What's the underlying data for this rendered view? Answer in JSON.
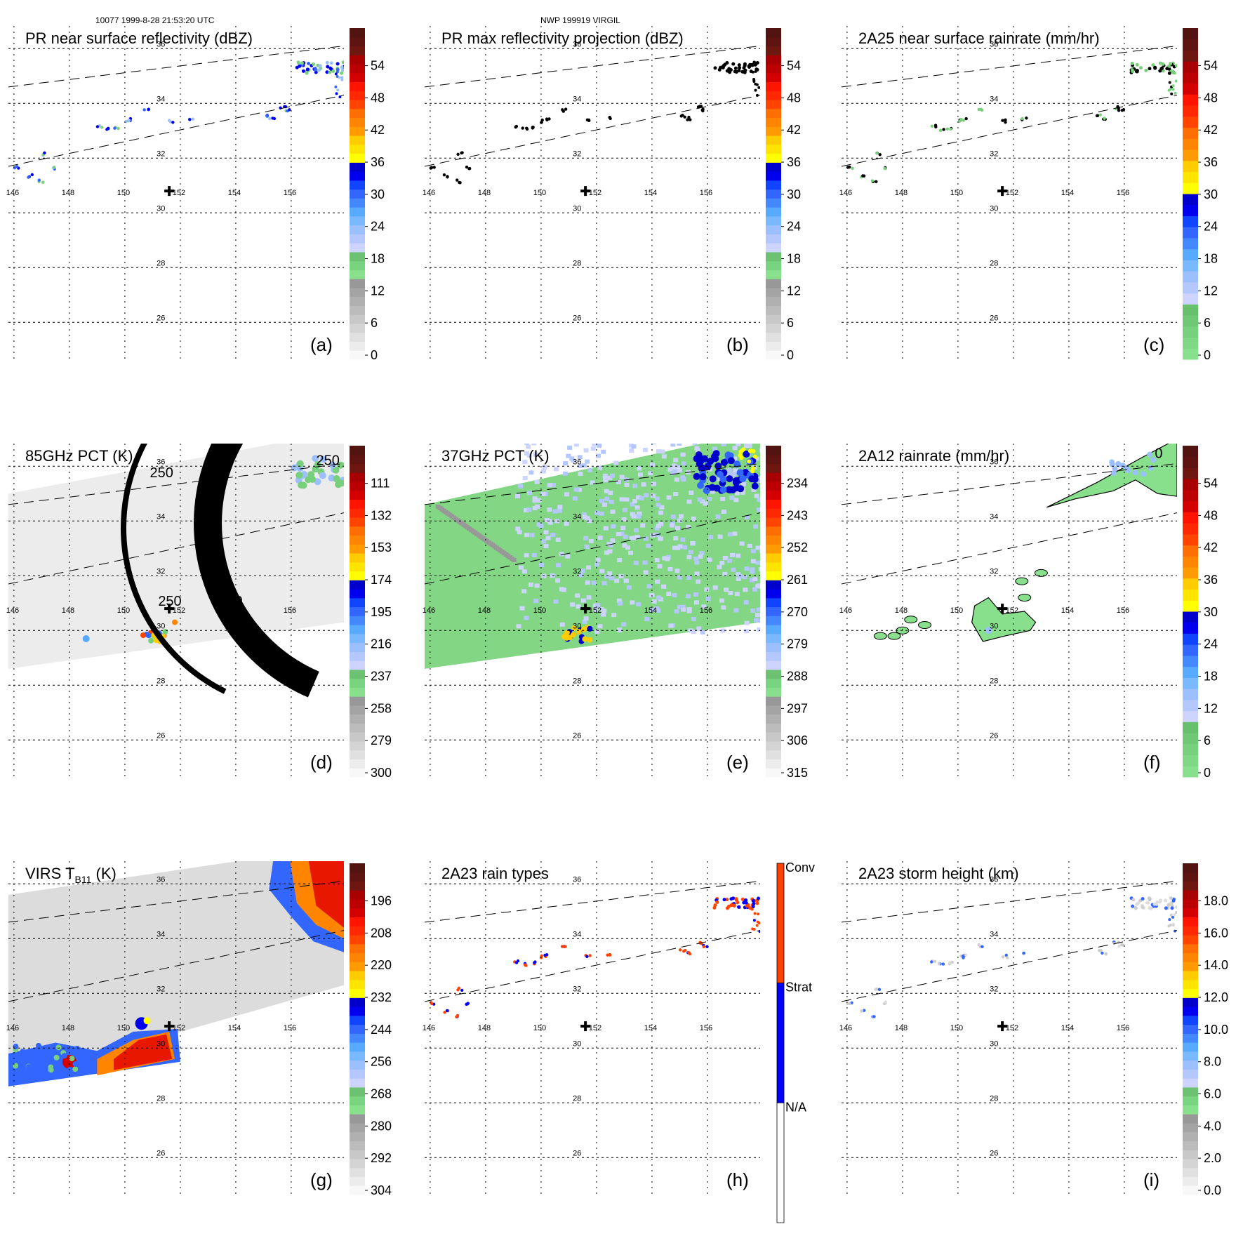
{
  "figure": {
    "header_left": "10077 1999-8-28 21:53:20 UTC",
    "header_center": "NWP 199919 VIRGIL"
  },
  "chart_data": [
    {
      "id": "a",
      "type": "heatmap",
      "title": "PR near surface reflectivity (dBZ)",
      "panel_label": "(a)",
      "map": {
        "lon_ticks": [
          146,
          148,
          150,
          152,
          154,
          156
        ],
        "lat_ticks": [
          26,
          28,
          30,
          32,
          34,
          36
        ],
        "lon_range": [
          145.8,
          157.9
        ],
        "lat_range": [
          24.7,
          36.7
        ],
        "storm_center": [
          151.6,
          30.8
        ],
        "swath_edges": "dashed",
        "grid": true
      },
      "colorbar": {
        "ticks": [
          "54",
          "48",
          "42",
          "36",
          "30",
          "24",
          "18",
          "12",
          "6",
          "0"
        ],
        "range": [
          0,
          60
        ],
        "scheme": "gray-green-blue-yellow-orange-red-maroon"
      },
      "content": "sparse echoes along narrow PR swath"
    },
    {
      "id": "b",
      "type": "heatmap",
      "title": "PR max reflectivity projection (dBZ)",
      "panel_label": "(b)",
      "map": {
        "lon_ticks": [
          146,
          148,
          150,
          152,
          154,
          156
        ],
        "lat_ticks": [
          26,
          28,
          30,
          32,
          34,
          36
        ],
        "lon_range": [
          145.8,
          157.9
        ],
        "lat_range": [
          24.7,
          36.7
        ],
        "storm_center": [
          151.6,
          30.8
        ],
        "swath_edges": "dashed",
        "grid": true
      },
      "colorbar": {
        "ticks": [
          "54",
          "48",
          "42",
          "36",
          "30",
          "24",
          "18",
          "12",
          "6",
          "0"
        ],
        "range": [
          0,
          60
        ],
        "scheme": "gray-green-blue-yellow-orange-red-maroon"
      },
      "content": "sparse echoes with black contours"
    },
    {
      "id": "c",
      "type": "heatmap",
      "title": "2A25 near surface rainrate (mm/hr)",
      "panel_label": "(c)",
      "map": {
        "lon_ticks": [
          146,
          148,
          150,
          152,
          154,
          156
        ],
        "lat_ticks": [
          26,
          28,
          30,
          32,
          34,
          36
        ],
        "lon_range": [
          145.8,
          157.9
        ],
        "lat_range": [
          24.7,
          36.7
        ],
        "storm_center": [
          151.6,
          30.8
        ],
        "swath_edges": "dashed",
        "grid": true
      },
      "colorbar": {
        "ticks": [
          "54",
          "48",
          "42",
          "36",
          "30",
          "24",
          "18",
          "12",
          "6",
          "0"
        ],
        "range": [
          0,
          60
        ],
        "scheme": "green-blue-yellow-orange-red-maroon"
      },
      "content": "sparse light rain"
    },
    {
      "id": "d",
      "type": "heatmap",
      "title": "85GHz PCT (K)",
      "panel_label": "(d)",
      "map": {
        "lon_ticks": [
          146,
          148,
          150,
          152,
          154,
          156
        ],
        "lat_ticks": [
          26,
          28,
          30,
          32,
          34,
          36
        ],
        "lon_range": [
          145.8,
          157.9
        ],
        "lat_range": [
          24.7,
          36.7
        ],
        "storm_center": [
          151.6,
          30.8
        ],
        "swath_edges": "dashed",
        "grid": true
      },
      "colorbar": {
        "ticks": [
          "111",
          "132",
          "153",
          "174",
          "195",
          "216",
          "237",
          "258",
          "279",
          "300"
        ],
        "range": [
          90,
          300
        ],
        "scheme": "gray-green-blue-yellow-orange-red-maroon"
      },
      "contour_labels": [
        "250",
        "250",
        "250",
        "250"
      ],
      "content": "TMI swath, mostly warm gray with cold cores near 150-151E 29.5N and 157E 35.5N"
    },
    {
      "id": "e",
      "type": "heatmap",
      "title": "37GHz PCT (K)",
      "panel_label": "(e)",
      "map": {
        "lon_ticks": [
          146,
          148,
          150,
          152,
          154,
          156
        ],
        "lat_ticks": [
          26,
          28,
          30,
          32,
          34,
          36
        ],
        "lon_range": [
          145.8,
          157.9
        ],
        "lat_range": [
          24.7,
          36.7
        ],
        "storm_center": [
          151.6,
          30.8
        ],
        "swath_edges": "dashed",
        "grid": true
      },
      "colorbar": {
        "ticks": [
          "234",
          "243",
          "252",
          "261",
          "270",
          "279",
          "288",
          "297",
          "306",
          "315"
        ],
        "range": [
          225,
          315
        ],
        "scheme": "gray-green-blue-yellow-orange-red-maroon"
      },
      "content": "TMI swath, green background with light-blue patches and cold core near 157E 36N"
    },
    {
      "id": "f",
      "type": "heatmap",
      "title": "2A12 rainrate (mm/hr)",
      "panel_label": "(f)",
      "map": {
        "lon_ticks": [
          146,
          148,
          150,
          152,
          154,
          156
        ],
        "lat_ticks": [
          26,
          28,
          30,
          32,
          34,
          36
        ],
        "lon_range": [
          145.8,
          157.9
        ],
        "lat_range": [
          24.7,
          36.7
        ],
        "storm_center": [
          151.6,
          30.8
        ],
        "swath_edges": "dashed",
        "grid": true
      },
      "colorbar": {
        "ticks": [
          "54",
          "48",
          "42",
          "36",
          "30",
          "24",
          "18",
          "12",
          "6",
          "0"
        ],
        "range": [
          0,
          60
        ],
        "scheme": "green-blue-yellow-orange-red-maroon"
      },
      "contour_labels": [
        "0"
      ],
      "content": "light rain band NE and cluster around storm center"
    },
    {
      "id": "g",
      "type": "heatmap",
      "title": "VIRS T",
      "title_sub": "B11",
      "title_suffix": " (K)",
      "panel_label": "(g)",
      "map": {
        "lon_ticks": [
          146,
          148,
          150,
          152,
          154,
          156
        ],
        "lat_ticks": [
          26,
          28,
          30,
          32,
          34,
          36
        ],
        "lon_range": [
          145.8,
          157.9
        ],
        "lat_range": [
          24.7,
          36.7
        ],
        "storm_center": [
          151.6,
          30.8
        ],
        "swath_edges": "dashed",
        "grid": true
      },
      "colorbar": {
        "ticks": [
          "196",
          "208",
          "220",
          "232",
          "244",
          "256",
          "268",
          "280",
          "292",
          "304"
        ],
        "range": [
          184,
          304
        ],
        "scheme": "gray-green-blue-yellow-orange-red-maroon"
      },
      "content": "VIRS IR with cold cloud tops NE and along southern edge"
    },
    {
      "id": "h",
      "type": "heatmap",
      "title": "2A23 rain types",
      "panel_label": "(h)",
      "map": {
        "lon_ticks": [
          146,
          148,
          150,
          152,
          154,
          156
        ],
        "lat_ticks": [
          26,
          28,
          30,
          32,
          34,
          36
        ],
        "lon_range": [
          145.8,
          157.9
        ],
        "lat_range": [
          24.7,
          36.7
        ],
        "storm_center": [
          151.6,
          30.8
        ],
        "swath_edges": "dashed",
        "grid": true
      },
      "colorbar": {
        "categories": [
          "Conv",
          "Strat",
          "N/A"
        ],
        "colors": [
          "#ff4000",
          "#0000ff",
          "#ffffff"
        ]
      },
      "content": "mostly convective pixels (orange) with stratiform (blue) in NE"
    },
    {
      "id": "i",
      "type": "heatmap",
      "title": "2A23 storm height (km)",
      "panel_label": "(i)",
      "map": {
        "lon_ticks": [
          146,
          148,
          150,
          152,
          154,
          156
        ],
        "lat_ticks": [
          26,
          28,
          30,
          32,
          34,
          36
        ],
        "lon_range": [
          145.8,
          157.9
        ],
        "lat_range": [
          24.7,
          36.7
        ],
        "storm_center": [
          151.6,
          30.8
        ],
        "swath_edges": "dashed",
        "grid": true
      },
      "colorbar": {
        "ticks": [
          "18.0",
          "16.0",
          "14.0",
          "12.0",
          "10.0",
          "8.0",
          "6.0",
          "4.0",
          "2.0",
          "0.0"
        ],
        "range": [
          0,
          20
        ],
        "scheme": "gray-green-blue-yellow-orange-red-maroon"
      },
      "content": "sparse low heights"
    }
  ]
}
